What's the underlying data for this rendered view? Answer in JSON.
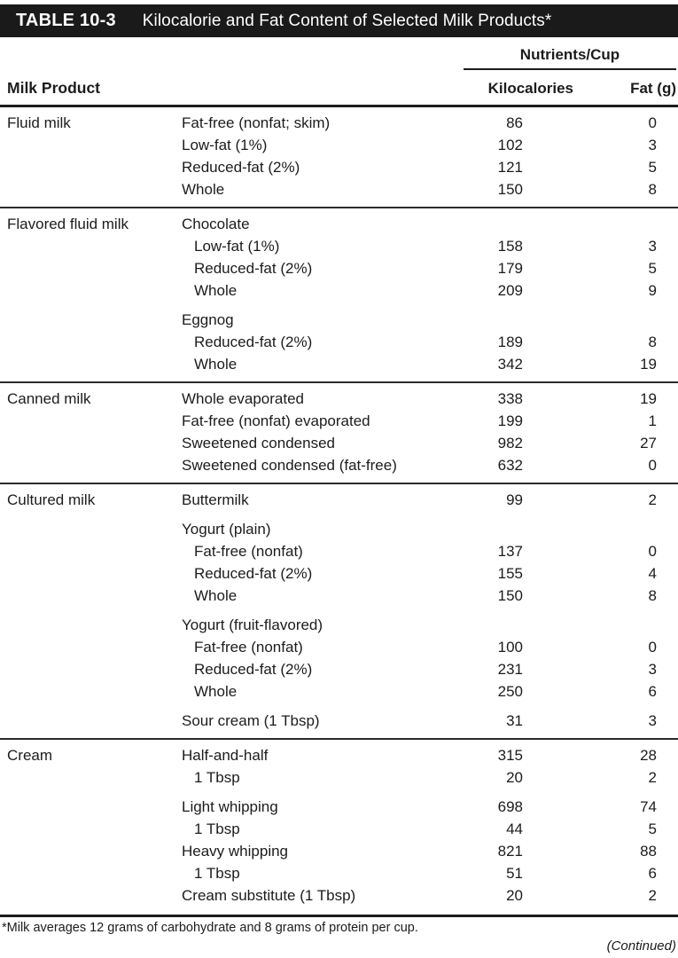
{
  "header": {
    "table_label": "TABLE 10-3",
    "title": "Kilocalorie and Fat Content of Selected Milk Products*"
  },
  "colors": {
    "title_bar_bg": "#1a1a1a",
    "title_bar_text": "#ffffff",
    "body_text": "#1c1c1c",
    "rule": "#1c1c1c"
  },
  "columns": {
    "spanner": "Nutrients/Cup",
    "milk_product": "Milk Product",
    "kilocalories": "Kilocalories",
    "fat": "Fat (g)"
  },
  "sections": [
    {
      "category": "Fluid milk",
      "rows": [
        {
          "label": "Fat-free (nonfat; skim)",
          "indent": 0,
          "kcal": "86",
          "fat": "0"
        },
        {
          "label": "Low-fat (1%)",
          "indent": 0,
          "kcal": "102",
          "fat": "3"
        },
        {
          "label": "Reduced-fat (2%)",
          "indent": 0,
          "kcal": "121",
          "fat": "5"
        },
        {
          "label": "Whole",
          "indent": 0,
          "kcal": "150",
          "fat": "8"
        }
      ]
    },
    {
      "category": "Flavored fluid milk",
      "rows": [
        {
          "label": "Chocolate",
          "indent": 0,
          "kcal": "",
          "fat": ""
        },
        {
          "label": "Low-fat (1%)",
          "indent": 1,
          "kcal": "158",
          "fat": "3"
        },
        {
          "label": "Reduced-fat (2%)",
          "indent": 1,
          "kcal": "179",
          "fat": "5"
        },
        {
          "label": "Whole",
          "indent": 1,
          "kcal": "209",
          "fat": "9"
        },
        {
          "label": "Eggnog",
          "indent": 0,
          "kcal": "",
          "fat": "",
          "gap_before": true
        },
        {
          "label": "Reduced-fat (2%)",
          "indent": 1,
          "kcal": "189",
          "fat": "8"
        },
        {
          "label": "Whole",
          "indent": 1,
          "kcal": "342",
          "fat": "19"
        }
      ]
    },
    {
      "category": "Canned milk",
      "rows": [
        {
          "label": "Whole evaporated",
          "indent": 0,
          "kcal": "338",
          "fat": "19"
        },
        {
          "label": "Fat-free (nonfat) evaporated",
          "indent": 0,
          "kcal": "199",
          "fat": "1"
        },
        {
          "label": "Sweetened condensed",
          "indent": 0,
          "kcal": "982",
          "fat": "27"
        },
        {
          "label": "Sweetened condensed (fat-free)",
          "indent": 0,
          "kcal": "632",
          "fat": "0"
        }
      ]
    },
    {
      "category": "Cultured milk",
      "rows": [
        {
          "label": "Buttermilk",
          "indent": 0,
          "kcal": "99",
          "fat": "2"
        },
        {
          "label": "Yogurt (plain)",
          "indent": 0,
          "kcal": "",
          "fat": "",
          "gap_before": true
        },
        {
          "label": "Fat-free (nonfat)",
          "indent": 1,
          "kcal": "137",
          "fat": "0"
        },
        {
          "label": "Reduced-fat (2%)",
          "indent": 1,
          "kcal": "155",
          "fat": "4"
        },
        {
          "label": "Whole",
          "indent": 1,
          "kcal": "150",
          "fat": "8"
        },
        {
          "label": "Yogurt (fruit-flavored)",
          "indent": 0,
          "kcal": "",
          "fat": "",
          "gap_before": true
        },
        {
          "label": "Fat-free (nonfat)",
          "indent": 1,
          "kcal": "100",
          "fat": "0"
        },
        {
          "label": "Reduced-fat (2%)",
          "indent": 1,
          "kcal": "231",
          "fat": "3"
        },
        {
          "label": "Whole",
          "indent": 1,
          "kcal": "250",
          "fat": "6"
        },
        {
          "label": "Sour cream (1 Tbsp)",
          "indent": 0,
          "kcal": "31",
          "fat": "3",
          "gap_before": true
        }
      ]
    },
    {
      "category": "Cream",
      "rows": [
        {
          "label": "Half-and-half",
          "indent": 0,
          "kcal": "315",
          "fat": "28"
        },
        {
          "label": "1 Tbsp",
          "indent": 1,
          "kcal": "20",
          "fat": "2"
        },
        {
          "label": "Light whipping",
          "indent": 0,
          "kcal": "698",
          "fat": "74",
          "gap_before": true
        },
        {
          "label": "1 Tbsp",
          "indent": 1,
          "kcal": "44",
          "fat": "5"
        },
        {
          "label": "Heavy whipping",
          "indent": 0,
          "kcal": "821",
          "fat": "88"
        },
        {
          "label": "1 Tbsp",
          "indent": 1,
          "kcal": "51",
          "fat": "6"
        },
        {
          "label": "Cream substitute (1 Tbsp)",
          "indent": 0,
          "kcal": "20",
          "fat": "2"
        }
      ]
    }
  ],
  "footnote": "*Milk averages 12 grams of carbohydrate and 8 grams of protein per cup.",
  "continued": "(Continued)"
}
